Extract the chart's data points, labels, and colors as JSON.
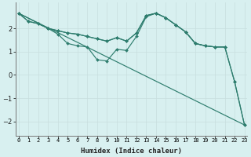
{
  "xlabel": "Humidex (Indice chaleur)",
  "bg_color": "#d8f0f0",
  "grid_color": "#c8dede",
  "line_color": "#2e7d6e",
  "lines": [
    {
      "x": [
        0,
        1,
        2,
        3,
        4,
        5,
        6,
        7,
        8,
        9,
        10,
        11,
        12,
        13,
        14,
        15,
        16,
        17,
        18,
        19,
        20,
        21
      ],
      "y": [
        2.65,
        2.3,
        2.2,
        2.0,
        1.9,
        1.8,
        1.75,
        1.65,
        1.55,
        1.45,
        1.6,
        1.45,
        1.8,
        2.55,
        2.65,
        2.45,
        2.15,
        1.85,
        1.35,
        1.25,
        1.2,
        1.2
      ],
      "has_markers": true
    },
    {
      "x": [
        0,
        1,
        2,
        3,
        4,
        5,
        6,
        7,
        8,
        9,
        10,
        11,
        12,
        13,
        14,
        15,
        16,
        17,
        18,
        19,
        20,
        21,
        22,
        23
      ],
      "y": [
        2.65,
        2.3,
        2.2,
        2.0,
        1.9,
        1.8,
        1.75,
        1.65,
        1.55,
        1.45,
        1.6,
        1.45,
        1.8,
        2.55,
        2.65,
        2.45,
        2.15,
        1.85,
        1.35,
        1.25,
        1.2,
        1.2,
        -0.3,
        -2.15
      ],
      "has_markers": true
    },
    {
      "x": [
        0,
        3,
        4,
        5,
        6,
        7,
        8,
        9,
        10,
        11,
        12,
        13,
        14,
        15,
        16,
        17,
        18,
        19,
        20,
        21,
        22,
        23
      ],
      "y": [
        2.65,
        2.0,
        1.75,
        1.35,
        1.25,
        1.2,
        0.65,
        0.6,
        1.1,
        1.05,
        1.65,
        2.5,
        2.65,
        2.45,
        2.15,
        1.85,
        1.35,
        1.25,
        1.2,
        1.2,
        -0.3,
        -2.15
      ],
      "has_markers": true
    },
    {
      "x": [
        0,
        23
      ],
      "y": [
        2.65,
        -2.15
      ],
      "has_markers": false
    }
  ],
  "ylim": [
    -2.6,
    3.1
  ],
  "xlim": [
    -0.3,
    23.3
  ],
  "yticks": [
    -2,
    -1,
    0,
    1,
    2
  ],
  "xticks": [
    0,
    1,
    2,
    3,
    4,
    5,
    6,
    7,
    8,
    9,
    10,
    11,
    12,
    13,
    14,
    15,
    16,
    17,
    18,
    19,
    20,
    21,
    22,
    23
  ],
  "figsize": [
    3.2,
    2.0
  ],
  "dpi": 100
}
